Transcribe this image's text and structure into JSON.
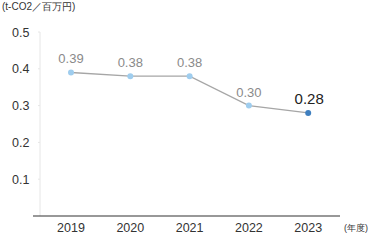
{
  "chart_data": {
    "type": "line",
    "y_label": "(t-CO2／百万円)",
    "x_label": "(年度)",
    "categories": [
      "2019",
      "2020",
      "2021",
      "2022",
      "2023"
    ],
    "values": [
      0.39,
      0.38,
      0.38,
      0.3,
      0.28
    ],
    "value_labels": [
      "0.39",
      "0.38",
      "0.38",
      "0.30",
      "0.28"
    ],
    "color": "#a6a6a6",
    "colors": [
      "#9fcdee",
      "#9fcdee",
      "#9fcdee",
      "#9fcdee",
      "#3f7fbf"
    ],
    "marker": "circle",
    "ylim": [
      0,
      0.5
    ],
    "yticks": [
      0.1,
      0.2,
      0.3,
      0.4,
      0.5
    ],
    "grid": false,
    "data_labels": true
  }
}
